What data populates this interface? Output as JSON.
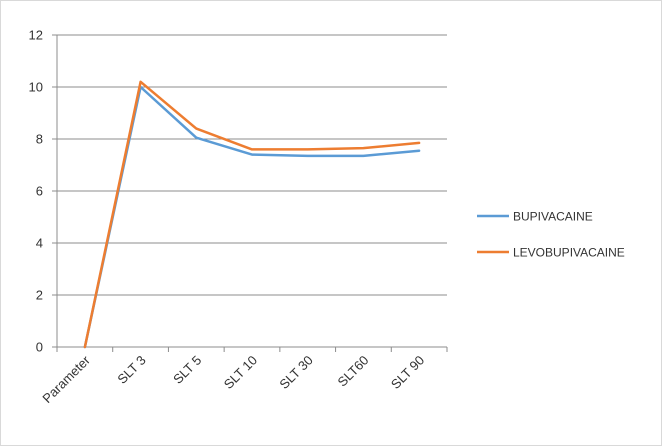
{
  "chart_data": {
    "type": "line",
    "categories": [
      "Parameter",
      "SLT 3",
      "SLT 5",
      "SLT 10",
      "SLT 30",
      "SLT60",
      "SLT 90"
    ],
    "series": [
      {
        "name": "BUPIVACAINE",
        "color": "#5b9bd5",
        "values": [
          0,
          10.0,
          8.05,
          7.4,
          7.35,
          7.35,
          7.55
        ]
      },
      {
        "name": "LEVOBUPIVACAINE",
        "color": "#ed7d31",
        "values": [
          0,
          10.2,
          8.4,
          7.6,
          7.6,
          7.65,
          7.85
        ]
      }
    ],
    "ylim": [
      0,
      12
    ],
    "yticks": [
      0,
      2,
      4,
      6,
      8,
      10,
      12
    ],
    "grid": true,
    "legend_position": "right",
    "title": "",
    "xlabel": "",
    "ylabel": ""
  }
}
